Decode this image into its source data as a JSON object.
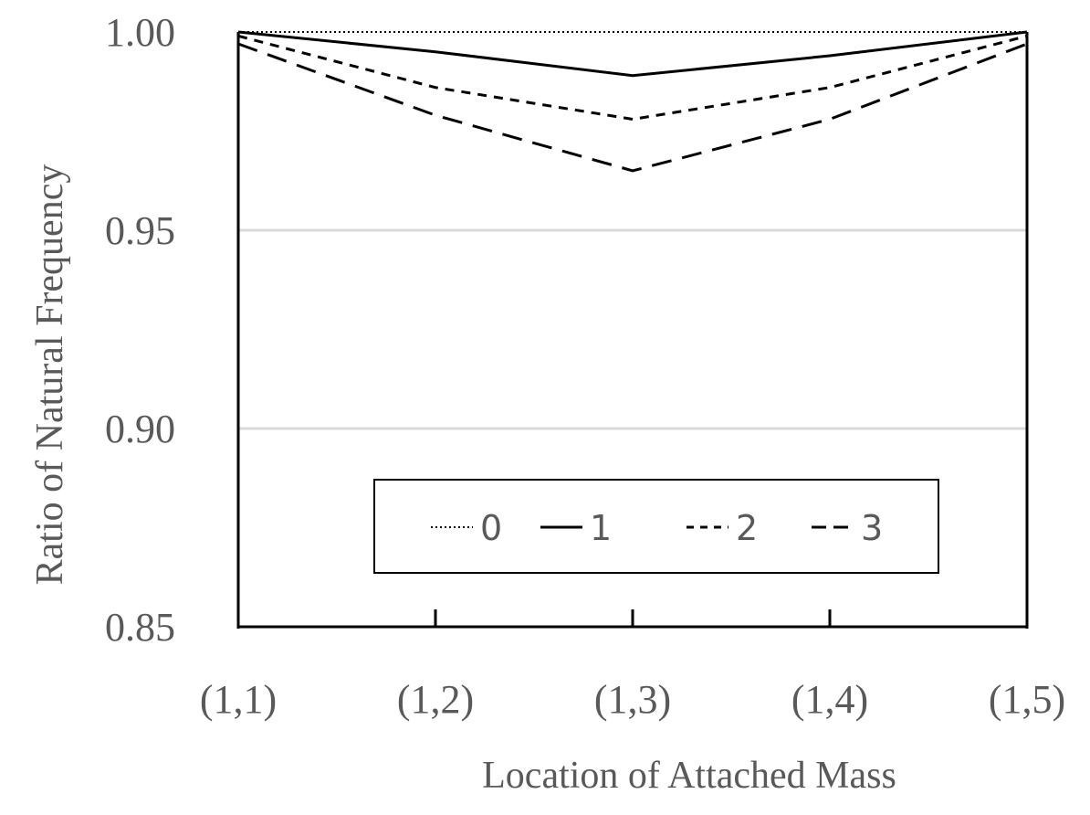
{
  "chart_data": {
    "type": "line",
    "title": "",
    "xlabel": "Location of Attached Mass",
    "ylabel": "Ratio of Natural Frequency",
    "categories": [
      "(1,1)",
      "(1,2)",
      "(1,3)",
      "(1,4)",
      "(1,5)"
    ],
    "ylim": [
      0.85,
      1.0
    ],
    "yticks": [
      "0.85",
      "0.90",
      "0.95",
      "1.00"
    ],
    "ytick_values": [
      0.85,
      0.9,
      0.95,
      1.0
    ],
    "grid": "horizontal",
    "legend_position": "inside-bottom-center",
    "series": [
      {
        "name": "0",
        "style": "dotted",
        "color": "#000000",
        "values": [
          1.0,
          1.0,
          1.0,
          1.0,
          1.0
        ]
      },
      {
        "name": "1",
        "style": "solid",
        "color": "#000000",
        "values": [
          1.0,
          0.995,
          0.989,
          0.994,
          1.0
        ]
      },
      {
        "name": "2",
        "style": "short-dash",
        "color": "#000000",
        "values": [
          0.999,
          0.986,
          0.978,
          0.986,
          0.999
        ]
      },
      {
        "name": "3",
        "style": "long-dash",
        "color": "#000000",
        "values": [
          0.997,
          0.979,
          0.965,
          0.978,
          0.997
        ]
      }
    ]
  }
}
